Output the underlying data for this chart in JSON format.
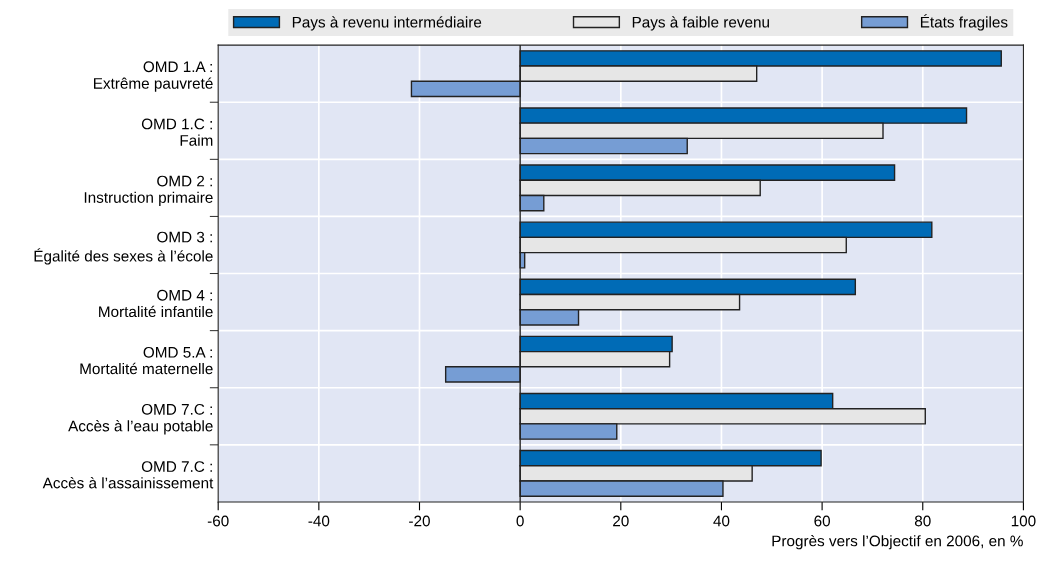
{
  "chart_data": {
    "type": "bar",
    "orientation": "horizontal",
    "categories": [
      "OMD 1.A :\nExtrême pauvreté",
      "OMD 1.C :\nFaim",
      "OMD 2 :\nInstruction primaire",
      "OMD 3 :\nÉgalité des sexes à l’école",
      "OMD 4 :\nMortalité infantile",
      "OMD 5.A :\nMortalité maternelle",
      "OMD 7.C :\nAccès à l’eau potable",
      "OMD 7.C :\nAccès à l’assainissement"
    ],
    "series": [
      {
        "name": "Pays à revenu intermédiaire",
        "color": "#006bb6",
        "values": [
          95.6,
          88.7,
          74.4,
          81.8,
          66.6,
          30.2,
          62.1,
          59.8
        ]
      },
      {
        "name": "Pays à faible revenu",
        "color": "#e6e6e6",
        "values": [
          47.0,
          72.1,
          47.7,
          64.8,
          43.6,
          29.7,
          80.5,
          46.1
        ]
      },
      {
        "name": "États fragiles",
        "color": "#769dd4",
        "values": [
          -21.6,
          33.2,
          4.7,
          0.9,
          11.6,
          -14.8,
          19.2,
          40.3
        ]
      }
    ],
    "xlabel": "Progrès vers l’Objectif en 2006, en %",
    "xlim": [
      -60,
      100
    ],
    "xticks": [
      -60,
      -40,
      -20,
      0,
      20,
      40,
      60,
      80,
      100
    ],
    "grid": true,
    "legend": "top"
  }
}
